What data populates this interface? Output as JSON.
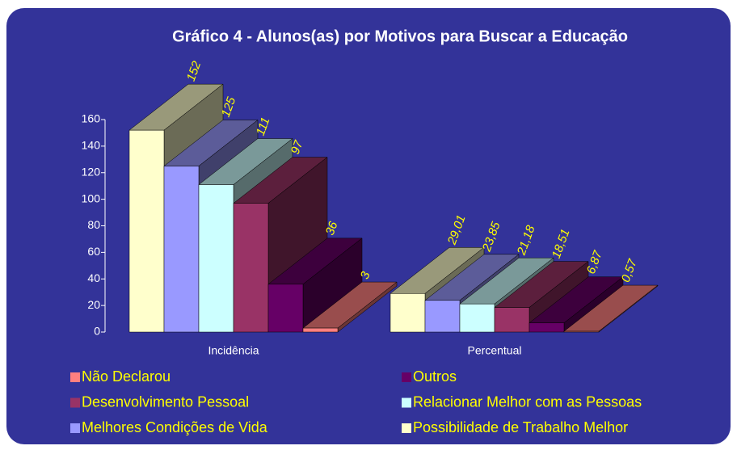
{
  "chart_data": {
    "type": "bar",
    "title": "Gráfico 4 - Alunos(as) por Motivos para Buscar a Educação",
    "categories": [
      "Incidência",
      "Percentual"
    ],
    "series": [
      {
        "name": "Possibilidade de Trabalho Melhor",
        "color": "#ffffcc",
        "values": [
          152,
          29.01
        ],
        "value_labels": [
          "152",
          "29,01"
        ]
      },
      {
        "name": "Melhores Condições de Vida",
        "color": "#9999ff",
        "values": [
          125,
          23.85
        ],
        "value_labels": [
          "125",
          "23,85"
        ]
      },
      {
        "name": "Relacionar Melhor com as Pessoas",
        "color": "#ccffff",
        "values": [
          111,
          21.18
        ],
        "value_labels": [
          "111",
          "21,18"
        ]
      },
      {
        "name": "Desenvolvimento Pessoal",
        "color": "#993366",
        "values": [
          97,
          18.51
        ],
        "value_labels": [
          "97",
          "18,51"
        ]
      },
      {
        "name": "Outros",
        "color": "#660066",
        "values": [
          36,
          6.87
        ],
        "value_labels": [
          "36",
          "6,87"
        ]
      },
      {
        "name": "Não Declarou",
        "color": "#ff8080",
        "values": [
          3,
          0.57
        ],
        "value_labels": [
          "3",
          "0,57"
        ]
      }
    ],
    "ylim": [
      0,
      160
    ],
    "yticks": [
      0,
      20,
      40,
      60,
      80,
      100,
      120,
      140,
      160
    ]
  }
}
